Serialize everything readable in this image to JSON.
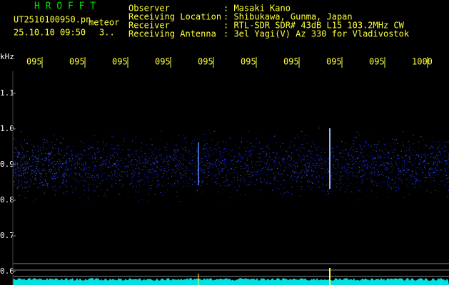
{
  "header": {
    "app_title": "H R O F F T",
    "file_name": "UT2510100950.pn",
    "mode": "meteor",
    "timestamp": "25.10.10 09:50",
    "counter": "3..",
    "info": [
      {
        "label": "Observer",
        "value": ": Masaki Kano"
      },
      {
        "label": "Receiving Location",
        "value": ": Shibukawa, Gunma, Japan"
      },
      {
        "label": "Receiver",
        "value": ": RTL-SDR SDR# 43dB L15 103.2MHz CW"
      },
      {
        "label": "Receiving Antenna",
        "value": ": 3el Yagi(V) Az 330 for Vladivostok"
      }
    ]
  },
  "spectrogram": {
    "y_unit": "kHz",
    "y_labels": [
      "1.1",
      "1.0",
      "0.9",
      "0.8",
      "0.7",
      "0.6"
    ],
    "x_labels": [
      "095",
      "095",
      "095",
      "095",
      "095",
      "095",
      "095",
      "095",
      "095",
      "1000"
    ]
  }
}
